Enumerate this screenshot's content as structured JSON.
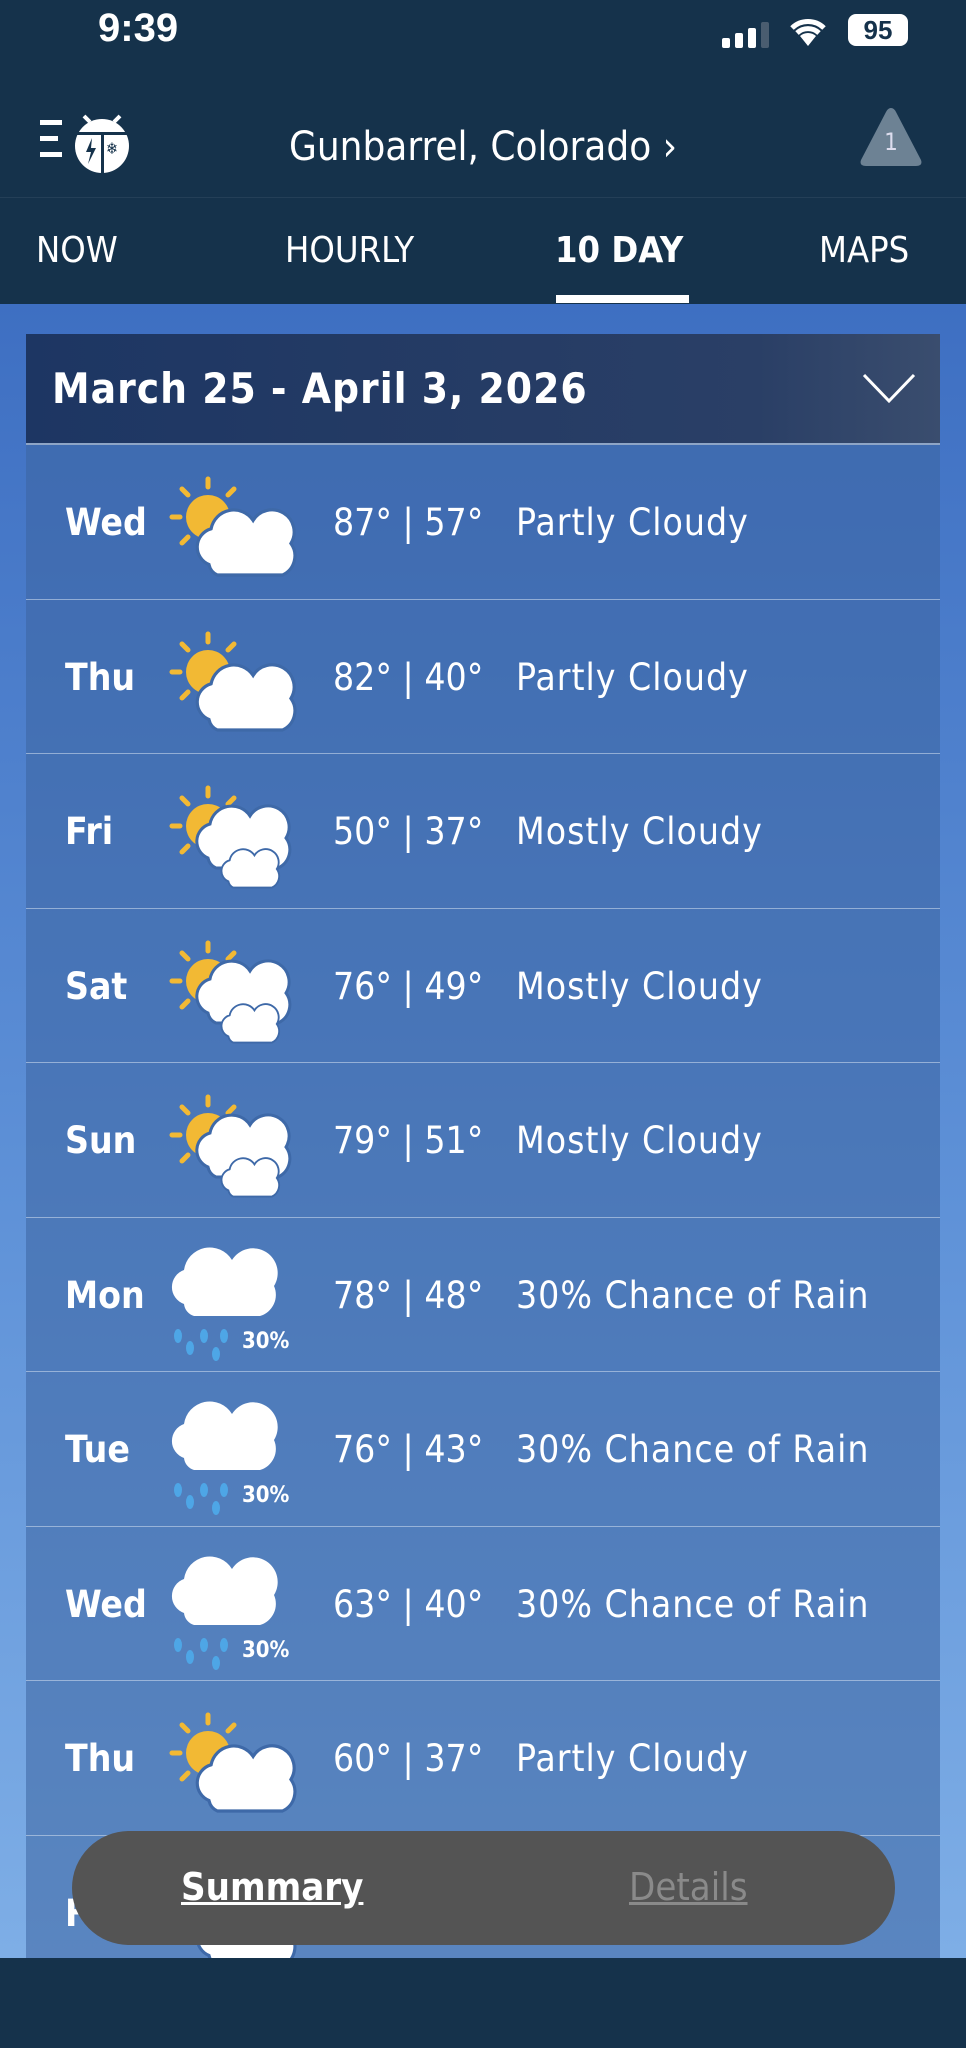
{
  "status_bar": {
    "time": "9:39",
    "battery": "95"
  },
  "header": {
    "location": "Gunbarrel, Colorado",
    "location_chevron": "›",
    "alert_count": "1"
  },
  "tabs": [
    {
      "label": "NOW"
    },
    {
      "label": "HOURLY"
    },
    {
      "label": "10 DAY",
      "active": true
    },
    {
      "label": "MAPS"
    }
  ],
  "forecast": {
    "date_range": "March 25 - April 3, 2026",
    "days": [
      {
        "day": "Wed",
        "icon": "partly-cloudy",
        "temps": "87° | 57°",
        "condition": "Partly Cloudy"
      },
      {
        "day": "Thu",
        "icon": "partly-cloudy",
        "temps": "82° | 40°",
        "condition": "Partly Cloudy"
      },
      {
        "day": "Fri",
        "icon": "mostly-cloudy",
        "temps": "50° | 37°",
        "condition": "Mostly Cloudy"
      },
      {
        "day": "Sat",
        "icon": "mostly-cloudy",
        "temps": "76° | 49°",
        "condition": "Mostly Cloudy"
      },
      {
        "day": "Sun",
        "icon": "mostly-cloudy",
        "temps": "79° | 51°",
        "condition": "Mostly Cloudy"
      },
      {
        "day": "Mon",
        "icon": "rain",
        "precip": "30%",
        "temps": "78° | 48°",
        "condition": "30% Chance of Rain"
      },
      {
        "day": "Tue",
        "icon": "rain",
        "precip": "30%",
        "temps": "76° | 43°",
        "condition": "30% Chance of Rain"
      },
      {
        "day": "Wed",
        "icon": "rain",
        "precip": "30%",
        "temps": "63° | 40°",
        "condition": "30% Chance of Rain"
      },
      {
        "day": "Thu",
        "icon": "partly-cloudy",
        "temps": "60° | 37°",
        "condition": "Partly Cloudy"
      },
      {
        "day": "F",
        "icon": "partly-cloudy",
        "temps": "",
        "condition": ""
      }
    ]
  },
  "view_toggle": {
    "summary": "Summary",
    "details": "Details"
  },
  "colors": {
    "nav": "#15324b",
    "sun": "#f2b934",
    "rain": "#4ea6e6",
    "pill": "#545454"
  }
}
